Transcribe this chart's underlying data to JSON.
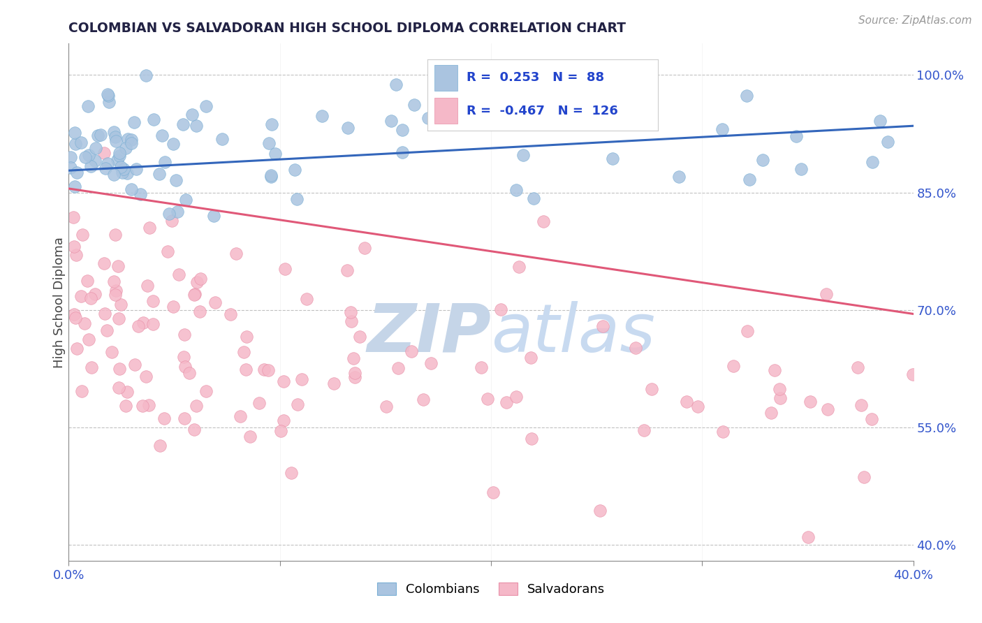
{
  "title": "COLOMBIAN VS SALVADORAN HIGH SCHOOL DIPLOMA CORRELATION CHART",
  "source_text": "Source: ZipAtlas.com",
  "ylabel": "High School Diploma",
  "xlim": [
    0.0,
    0.4
  ],
  "ylim": [
    0.38,
    1.04
  ],
  "ytick_positions": [
    0.4,
    0.55,
    0.7,
    0.85,
    1.0
  ],
  "ytick_labels": [
    "40.0%",
    "55.0%",
    "70.0%",
    "85.0%",
    "100.0%"
  ],
  "blue_R": 0.253,
  "blue_N": 88,
  "pink_R": -0.467,
  "pink_N": 126,
  "blue_color": "#aac4e0",
  "blue_edge_color": "#7aafd4",
  "blue_line_color": "#3366bb",
  "pink_color": "#f5b8c8",
  "pink_edge_color": "#e890a8",
  "pink_line_color": "#e05878",
  "legend_R_color": "#2244cc",
  "title_color": "#222244",
  "axis_tick_color": "#3355cc",
  "source_color": "#999999",
  "watermark_zip_color": "#c5d5e8",
  "watermark_atlas_color": "#c8daf0",
  "blue_line_y0": 0.878,
  "blue_line_y1": 0.935,
  "pink_line_y0": 0.855,
  "pink_line_y1": 0.695
}
